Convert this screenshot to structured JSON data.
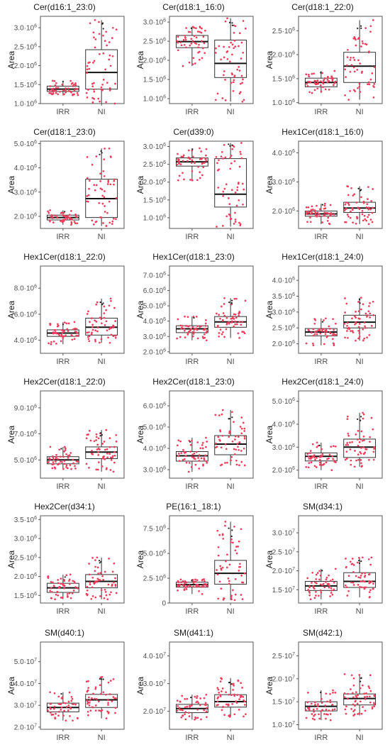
{
  "chart_data": [
    {
      "type": "box",
      "title": "Cer(d16:1_23:0)",
      "ylabel": "Area",
      "ylim": [
        1000000,
        3300000
      ],
      "yticks": [
        [
          1000000,
          "1.0·10",
          "6"
        ],
        [
          1500000,
          "1.5·10",
          "6"
        ],
        [
          2000000,
          "2.0·10",
          "6"
        ],
        [
          2500000,
          "2.5·10",
          "6"
        ],
        [
          3000000,
          "3.0·10",
          "6"
        ]
      ],
      "categories": [
        "IRR",
        "NI"
      ],
      "boxes": [
        {
          "q1": 1320000,
          "median": 1380000,
          "q3": 1460000,
          "lower": 1220000,
          "upper": 1600000,
          "n": 50
        },
        {
          "q1": 1380000,
          "median": 1820000,
          "q3": 2420000,
          "lower": 1000000,
          "upper": 3200000,
          "n": 55
        }
      ]
    },
    {
      "type": "box",
      "title": "Cer(d18:1_16:0)",
      "ylabel": "Area",
      "ylim": [
        870000,
        3150000
      ],
      "yticks": [
        [
          1000000,
          "1.0·10",
          "6"
        ],
        [
          1500000,
          "1.5·10",
          "6"
        ],
        [
          2000000,
          "2.0·10",
          "6"
        ],
        [
          2500000,
          "2.5·10",
          "6"
        ],
        [
          3000000,
          "3.0·10",
          "6"
        ]
      ],
      "categories": [
        "IRR",
        "NI"
      ],
      "boxes": [
        {
          "q1": 2330000,
          "median": 2490000,
          "q3": 2650000,
          "lower": 1850000,
          "upper": 2880000,
          "n": 50
        },
        {
          "q1": 1550000,
          "median": 1920000,
          "q3": 2530000,
          "lower": 920000,
          "upper": 3100000,
          "n": 55
        }
      ]
    },
    {
      "type": "box",
      "title": "Cer(d18:1_22:0)",
      "ylabel": "Area",
      "ylim": [
        980000,
        2800000
      ],
      "yticks": [
        [
          1000000,
          "1.0·10",
          "6"
        ],
        [
          1500000,
          "1.5·10",
          "6"
        ],
        [
          2000000,
          "2.0·10",
          "6"
        ],
        [
          2500000,
          "2.5·10",
          "6"
        ]
      ],
      "categories": [
        "IRR",
        "NI"
      ],
      "boxes": [
        {
          "q1": 1330000,
          "median": 1420000,
          "q3": 1510000,
          "lower": 1200000,
          "upper": 1660000,
          "n": 50
        },
        {
          "q1": 1420000,
          "median": 1760000,
          "q3": 2050000,
          "lower": 1060000,
          "upper": 2720000,
          "n": 55
        }
      ]
    },
    {
      "type": "box",
      "title": "Cer(d18:1_23:0)",
      "ylabel": "Area",
      "ylim": [
        1500000,
        5100000
      ],
      "yticks": [
        [
          2000000,
          "2.0·10",
          "6"
        ],
        [
          3000000,
          "3.0·10",
          "6"
        ],
        [
          4000000,
          "4.0·10",
          "6"
        ],
        [
          5000000,
          "5.0·10",
          "6"
        ]
      ],
      "categories": [
        "IRR",
        "NI"
      ],
      "boxes": [
        {
          "q1": 1850000,
          "median": 1950000,
          "q3": 2050000,
          "lower": 1650000,
          "upper": 2250000,
          "n": 50
        },
        {
          "q1": 1950000,
          "median": 2730000,
          "q3": 3530000,
          "lower": 1600000,
          "upper": 4800000,
          "n": 55
        }
      ]
    },
    {
      "type": "box",
      "title": "Cer(d39:0)",
      "ylabel": "Area",
      "ylim": [
        700000,
        3150000
      ],
      "yticks": [
        [
          1000000,
          "1.0·10",
          "6"
        ],
        [
          1500000,
          "1.5·10",
          "6"
        ],
        [
          2000000,
          "2.0·10",
          "6"
        ],
        [
          2500000,
          "2.5·10",
          "6"
        ],
        [
          3000000,
          "3.0·10",
          "6"
        ]
      ],
      "categories": [
        "IRR",
        "NI"
      ],
      "boxes": [
        {
          "q1": 2450000,
          "median": 2570000,
          "q3": 2680000,
          "lower": 2050000,
          "upper": 2950000,
          "n": 50
        },
        {
          "q1": 1300000,
          "median": 1660000,
          "q3": 2660000,
          "lower": 750000,
          "upper": 3100000,
          "n": 55
        }
      ]
    },
    {
      "type": "box",
      "title": "Hex1Cer(d18:1_16:0)",
      "ylabel": "Area",
      "ylim": [
        1400000,
        4400000
      ],
      "yticks": [
        [
          2000000,
          "2.0·10",
          "6"
        ],
        [
          3000000,
          "3.0·10",
          "6"
        ],
        [
          4000000,
          "4.0·10",
          "6"
        ]
      ],
      "categories": [
        "IRR",
        "NI"
      ],
      "boxes": [
        {
          "q1": 1820000,
          "median": 1900000,
          "q3": 2000000,
          "lower": 1550000,
          "upper": 2250000,
          "n": 50
        },
        {
          "q1": 1950000,
          "median": 2100000,
          "q3": 2300000,
          "lower": 1550000,
          "upper": 2850000,
          "n": 55
        }
      ]
    },
    {
      "type": "box",
      "title": "Hex1Cer(d18:1_22:0)",
      "ylabel": "Area",
      "ylim": [
        3000000,
        9700000
      ],
      "yticks": [
        [
          4000000,
          "4.0·10",
          "6"
        ],
        [
          6000000,
          "6.0·10",
          "6"
        ],
        [
          8000000,
          "8.0·10",
          "6"
        ]
      ],
      "categories": [
        "IRR",
        "NI"
      ],
      "boxes": [
        {
          "q1": 4300000,
          "median": 4550000,
          "q3": 4800000,
          "lower": 3700000,
          "upper": 5400000,
          "n": 50
        },
        {
          "q1": 4400000,
          "median": 5000000,
          "q3": 5700000,
          "lower": 3800000,
          "upper": 7200000,
          "n": 55
        }
      ]
    },
    {
      "type": "box",
      "title": "Hex1Cer(d18:1_23:0)",
      "ylabel": "Area",
      "ylim": [
        1900000,
        7600000
      ],
      "yticks": [
        [
          2000000,
          "2.0·10",
          "6"
        ],
        [
          3000000,
          "3.0·10",
          "6"
        ],
        [
          4000000,
          "4.0·10",
          "6"
        ],
        [
          5000000,
          "5.0·10",
          "6"
        ],
        [
          6000000,
          "6.0·10",
          "6"
        ],
        [
          7000000,
          "7.0·10",
          "6"
        ]
      ],
      "categories": [
        "IRR",
        "NI"
      ],
      "boxes": [
        {
          "q1": 3250000,
          "median": 3500000,
          "q3": 3700000,
          "lower": 2750000,
          "upper": 4300000,
          "n": 50
        },
        {
          "q1": 3600000,
          "median": 3950000,
          "q3": 4300000,
          "lower": 2900000,
          "upper": 5500000,
          "n": 55
        }
      ]
    },
    {
      "type": "box",
      "title": "Hex1Cer(d18:1_24:0)",
      "ylabel": "Area",
      "ylim": [
        1700000,
        4450000
      ],
      "yticks": [
        [
          2000000,
          "2.0·10",
          "6"
        ],
        [
          2500000,
          "2.5·10",
          "6"
        ],
        [
          3000000,
          "3.0·10",
          "6"
        ],
        [
          3500000,
          "3.5·10",
          "6"
        ],
        [
          4000000,
          "4.0·10",
          "6"
        ]
      ],
      "categories": [
        "IRR",
        "NI"
      ],
      "boxes": [
        {
          "q1": 2250000,
          "median": 2370000,
          "q3": 2480000,
          "lower": 1950000,
          "upper": 2800000,
          "n": 50
        },
        {
          "q1": 2500000,
          "median": 2680000,
          "q3": 2900000,
          "lower": 2100000,
          "upper": 3450000,
          "n": 55
        }
      ]
    },
    {
      "type": "box",
      "title": "Hex2Cer(d18:1_22:0)",
      "ylabel": "Area",
      "ylim": [
        3600000,
        10300000
      ],
      "yticks": [
        [
          5000000,
          "5.0·10",
          "6"
        ],
        [
          7000000,
          "7.0·10",
          "6"
        ],
        [
          9000000,
          "9.0·10",
          "6"
        ]
      ],
      "categories": [
        "IRR",
        "NI"
      ],
      "boxes": [
        {
          "q1": 4700000,
          "median": 5000000,
          "q3": 5250000,
          "lower": 4300000,
          "upper": 6000000,
          "n": 50
        },
        {
          "q1": 5100000,
          "median": 5600000,
          "q3": 6000000,
          "lower": 4100000,
          "upper": 7300000,
          "n": 55
        }
      ]
    },
    {
      "type": "box",
      "title": "Hex2Cer(d18:1_23:0)",
      "ylabel": "Area",
      "ylim": [
        2600000,
        6700000
      ],
      "yticks": [
        [
          2000000,
          "2.0·10",
          "6"
        ],
        [
          3000000,
          "3.0·10",
          "6"
        ],
        [
          4000000,
          "4.0·10",
          "6"
        ],
        [
          5000000,
          "5.0·10",
          "6"
        ],
        [
          6000000,
          "6.0·10",
          "6"
        ]
      ],
      "categories": [
        "IRR",
        "NI"
      ],
      "boxes": [
        {
          "q1": 3400000,
          "median": 3650000,
          "q3": 3850000,
          "lower": 2900000,
          "upper": 4500000,
          "n": 50
        },
        {
          "q1": 3700000,
          "median": 4200000,
          "q3": 4600000,
          "lower": 3200000,
          "upper": 5800000,
          "n": 55
        }
      ]
    },
    {
      "type": "box",
      "title": "Hex2Cer(d18:1_24:0)",
      "ylabel": "Area",
      "ylim": [
        1650000,
        5450000
      ],
      "yticks": [
        [
          2000000,
          "2.0·10",
          "6"
        ],
        [
          3000000,
          "3.0·10",
          "6"
        ],
        [
          4000000,
          "4.0·10",
          "6"
        ],
        [
          5000000,
          "5.0·10",
          "6"
        ]
      ],
      "categories": [
        "IRR",
        "NI"
      ],
      "boxes": [
        {
          "q1": 2400000,
          "median": 2600000,
          "q3": 2750000,
          "lower": 2000000,
          "upper": 3200000,
          "n": 50
        },
        {
          "q1": 2550000,
          "median": 3000000,
          "q3": 3350000,
          "lower": 2150000,
          "upper": 4500000,
          "n": 55
        }
      ]
    },
    {
      "type": "box",
      "title": "Hex2Cer(d34:1)",
      "ylabel": "Area",
      "ylim": [
        1300000,
        3600000
      ],
      "yticks": [
        [
          1500000,
          "1.5·10",
          "6"
        ],
        [
          2000000,
          "2.0·10",
          "6"
        ],
        [
          2500000,
          "2.5·10",
          "6"
        ],
        [
          3000000,
          "3.0·10",
          "6"
        ],
        [
          3500000,
          "3.5·10",
          "6"
        ]
      ],
      "categories": [
        "IRR",
        "NI"
      ],
      "boxes": [
        {
          "q1": 1580000,
          "median": 1700000,
          "q3": 1820000,
          "lower": 1400000,
          "upper": 2050000,
          "n": 50
        },
        {
          "q1": 1700000,
          "median": 1870000,
          "q3": 2050000,
          "lower": 1400000,
          "upper": 2500000,
          "n": 55
        }
      ]
    },
    {
      "type": "box",
      "title": "PE(16:1_18:1)",
      "ylabel": "Area",
      "ylim": [
        0,
        8800000
      ],
      "yticks": [
        [
          0,
          "0",
          ""
        ],
        [
          2500000,
          "2.5·10",
          "6"
        ],
        [
          5000000,
          "5.0·10",
          "6"
        ],
        [
          7500000,
          "7.5·10",
          "6"
        ]
      ],
      "categories": [
        "IRR",
        "NI"
      ],
      "boxes": [
        {
          "q1": 1600000,
          "median": 1850000,
          "q3": 2100000,
          "lower": 900000,
          "upper": 2400000,
          "n": 50
        },
        {
          "q1": 1900000,
          "median": 3000000,
          "q3": 4300000,
          "lower": 300000,
          "upper": 8200000,
          "n": 55
        }
      ]
    },
    {
      "type": "box",
      "title": "SM(d34:1)",
      "ylabel": "Area",
      "ylim": [
        11500000,
        34500000
      ],
      "yticks": [
        [
          15000000,
          "1.5·10",
          "7"
        ],
        [
          20000000,
          "2.0·10",
          "7"
        ],
        [
          25000000,
          "2.5·10",
          "7"
        ],
        [
          30000000,
          "3.0·10",
          "7"
        ]
      ],
      "categories": [
        "IRR",
        "NI"
      ],
      "boxes": [
        {
          "q1": 14800000,
          "median": 16000000,
          "q3": 17200000,
          "lower": 12500000,
          "upper": 20500000,
          "n": 50
        },
        {
          "q1": 15600000,
          "median": 17200000,
          "q3": 19500000,
          "lower": 13000000,
          "upper": 23500000,
          "n": 55
        }
      ]
    },
    {
      "type": "box",
      "title": "SM(d40:1)",
      "ylabel": "Area",
      "ylim": [
        19000000,
        59000000
      ],
      "yticks": [
        [
          20000000,
          "2.0·10",
          "7"
        ],
        [
          30000000,
          "3.0·10",
          "7"
        ],
        [
          40000000,
          "4.0·10",
          "7"
        ],
        [
          50000000,
          "5.0·10",
          "7"
        ]
      ],
      "categories": [
        "IRR",
        "NI"
      ],
      "boxes": [
        {
          "q1": 27000000,
          "median": 29000000,
          "q3": 31000000,
          "lower": 23000000,
          "upper": 36000000,
          "n": 50
        },
        {
          "q1": 29000000,
          "median": 32500000,
          "q3": 35000000,
          "lower": 24000000,
          "upper": 43000000,
          "n": 55
        }
      ]
    },
    {
      "type": "box",
      "title": "SM(d41:1)",
      "ylabel": "Area",
      "ylim": [
        13500000,
        45000000
      ],
      "yticks": [
        [
          20000000,
          "2.0·10",
          "7"
        ],
        [
          30000000,
          "3.0·10",
          "7"
        ],
        [
          40000000,
          "4.0·10",
          "7"
        ]
      ],
      "categories": [
        "IRR",
        "NI"
      ],
      "boxes": [
        {
          "q1": 19500000,
          "median": 21000000,
          "q3": 22500000,
          "lower": 17000000,
          "upper": 26000000,
          "n": 50
        },
        {
          "q1": 21500000,
          "median": 23500000,
          "q3": 26000000,
          "lower": 18000000,
          "upper": 32000000,
          "n": 55
        }
      ]
    },
    {
      "type": "box",
      "title": "SM(d42:1)",
      "ylabel": "Area",
      "ylim": [
        9000000,
        28000000
      ],
      "yticks": [
        [
          10000000,
          "1.0·10",
          "7"
        ],
        [
          15000000,
          "1.5·10",
          "7"
        ],
        [
          20000000,
          "2.0·10",
          "7"
        ],
        [
          25000000,
          "2.5·10",
          "7"
        ]
      ],
      "categories": [
        "IRR",
        "NI"
      ],
      "boxes": [
        {
          "q1": 13000000,
          "median": 14000000,
          "q3": 15000000,
          "lower": 11000000,
          "upper": 17500000,
          "n": 50
        },
        {
          "q1": 14300000,
          "median": 15700000,
          "q3": 16700000,
          "lower": 12000000,
          "upper": 21000000,
          "n": 55
        }
      ]
    }
  ],
  "colors": {
    "points": "#f03c5a",
    "outlier": "#1a1a1a",
    "box": "#333333",
    "axis": "#555555",
    "text": "#1a1a1a"
  }
}
